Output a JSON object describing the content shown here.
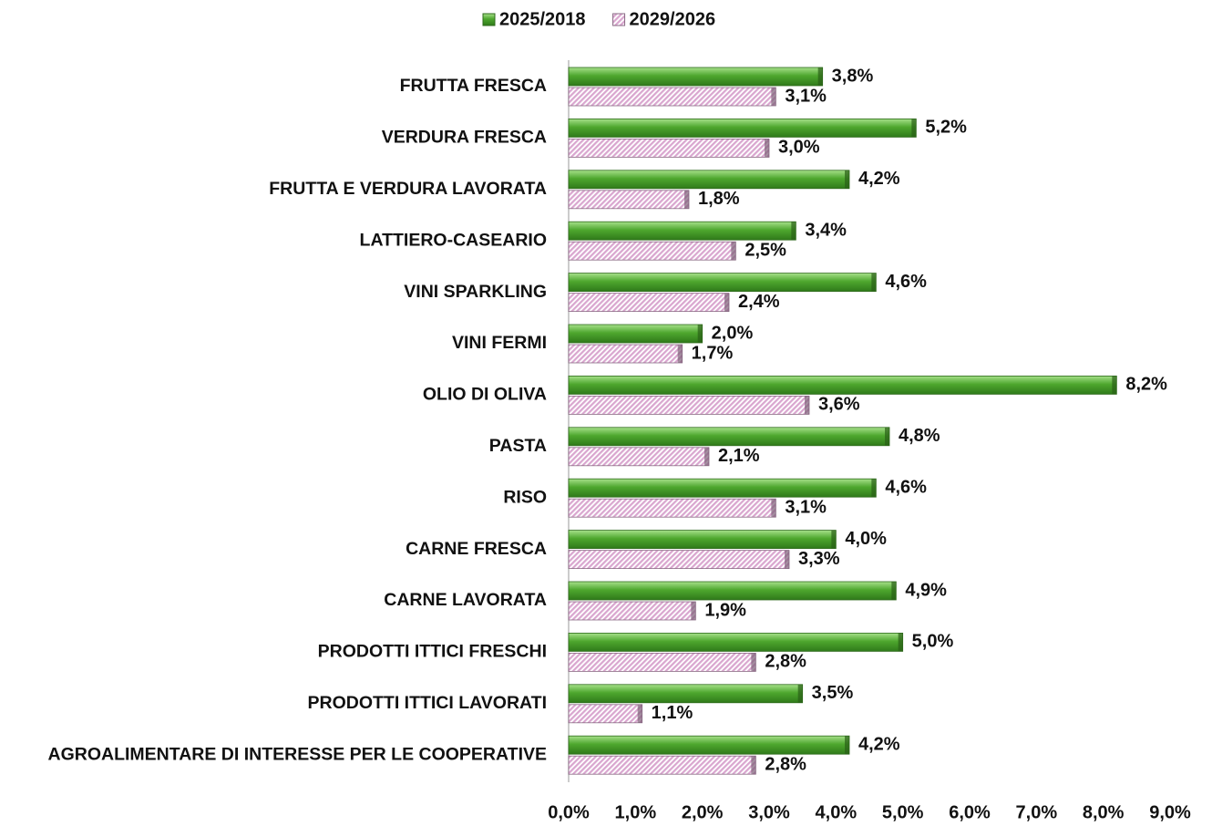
{
  "chart_data": {
    "type": "barh",
    "categories": [
      "FRUTTA FRESCA",
      "VERDURA FRESCA",
      "FRUTTA E VERDURA LAVORATA",
      "LATTIERO-CASEARIO",
      "VINI SPARKLING",
      "VINI FERMI",
      "OLIO DI OLIVA",
      "PASTA",
      "RISO",
      "CARNE FRESCA",
      "CARNE LAVORATA",
      "PRODOTTI ITTICI FRESCHI",
      "PRODOTTI ITTICI LAVORATI",
      "AGROALIMENTARE DI INTERESSE PER LE COOPERATIVE"
    ],
    "series": [
      {
        "name": "2025/2018",
        "color": "#4ea72e",
        "pattern": "gradient",
        "values": [
          3.8,
          5.2,
          4.2,
          3.4,
          4.6,
          2.0,
          8.2,
          4.8,
          4.6,
          4.0,
          4.9,
          5.0,
          3.5,
          4.2
        ],
        "value_labels": [
          "3,8%",
          "5,2%",
          "4,2%",
          "3,4%",
          "4,6%",
          "2,0%",
          "8,2%",
          "4,8%",
          "4,6%",
          "4,0%",
          "4,9%",
          "5,0%",
          "3,5%",
          "4,2%"
        ]
      },
      {
        "name": "2029/2026",
        "color": "#d9a6cf",
        "pattern": "hatch",
        "values": [
          3.1,
          3.0,
          1.8,
          2.5,
          2.4,
          1.7,
          3.6,
          2.1,
          3.1,
          3.3,
          1.9,
          2.8,
          1.1,
          2.8
        ],
        "value_labels": [
          "3,1%",
          "3,0%",
          "1,8%",
          "2,5%",
          "2,4%",
          "1,7%",
          "3,6%",
          "2,1%",
          "3,1%",
          "3,3%",
          "1,9%",
          "2,8%",
          "1,1%",
          "2,8%"
        ]
      }
    ],
    "xlim": [
      0,
      9
    ],
    "xticks": [
      {
        "value": 0,
        "label": "0,0%"
      },
      {
        "value": 1,
        "label": "1,0%"
      },
      {
        "value": 2,
        "label": "2,0%"
      },
      {
        "value": 3,
        "label": "3,0%"
      },
      {
        "value": 4,
        "label": "4,0%"
      },
      {
        "value": 5,
        "label": "5,0%"
      },
      {
        "value": 6,
        "label": "6,0%"
      },
      {
        "value": 7,
        "label": "7,0%"
      },
      {
        "value": 8,
        "label": "8,0%"
      },
      {
        "value": 9,
        "label": "9,0%"
      }
    ],
    "grid": false,
    "legend": "top"
  }
}
